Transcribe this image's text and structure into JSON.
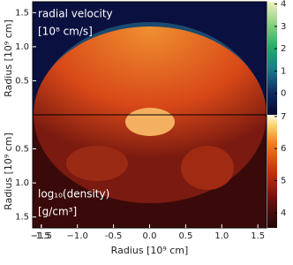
{
  "chart_data": [
    {
      "type": "heatmap",
      "annotation": "radial velocity",
      "annotation_units": "[10⁸ cm/s]",
      "ylabel": "Radius [10⁹ cm]",
      "xlim": [
        -1.62,
        1.62
      ],
      "ylim": [
        0,
        1.66
      ],
      "y_inverted": false,
      "yticks": [
        {
          "value": 1.5,
          "label": "1.5"
        },
        {
          "value": 1,
          "label": "1.0"
        },
        0.5
      ],
      "clim": [
        -0.96,
        4.1
      ],
      "cticks": [
        0,
        1,
        2,
        3,
        4
      ]
    },
    {
      "type": "heatmap",
      "annotation": "log₁₀(density)",
      "annotation_units": "[g/cm³]",
      "ylabel": "Radius [10⁹ cm]",
      "xlabel": "Radius [10⁹ cm]",
      "xlim": [
        -1.62,
        1.62
      ],
      "ylim": [
        0,
        1.66
      ],
      "y_inverted": true,
      "yticks": [
        0.5,
        {
          "value": 1,
          "label": "1.0"
        },
        1.5
      ],
      "xticks": [
        -1.5,
        {
          "value": -1,
          "label": "−1.0"
        },
        {
          "value": -1.5,
          "label": "−1.5"
        },
        -0.5,
        {
          "value": 0,
          "label": "0.0"
        },
        0.5,
        {
          "value": 1,
          "label": "1.0"
        },
        1.5
      ],
      "clim": [
        3.53,
        7.05
      ],
      "cticks": [
        4,
        5,
        6,
        7
      ]
    }
  ]
}
